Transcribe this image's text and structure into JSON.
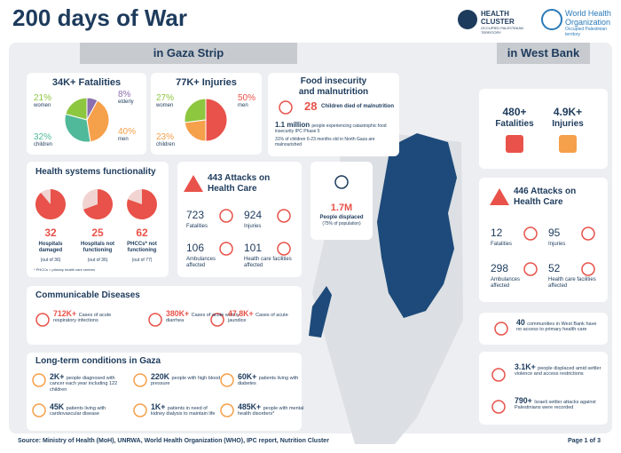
{
  "header": {
    "title": "200 days of War",
    "cluster_logo": [
      "HEALTH",
      "CLUSTER",
      "OCCUPIED PALESTINIAN TERRITORY"
    ],
    "who_logo": [
      "World Health",
      "Organization",
      "Occupied Palestinian territory"
    ]
  },
  "gaza": {
    "heading": "in Gaza Strip",
    "fatalities": {
      "title": "34K+ Fatalities",
      "shares": [
        {
          "value": 21,
          "label": "21%",
          "group": "women",
          "color": "#8dc63f"
        },
        {
          "value": 8,
          "label": "8%",
          "group": "elderly",
          "color": "#8b6fb0"
        },
        {
          "value": 40,
          "label": "40%",
          "group": "men",
          "color": "#f5a04a"
        },
        {
          "value": 32,
          "label": "32%",
          "group": "children",
          "color": "#4fb99a"
        }
      ]
    },
    "injuries": {
      "title": "77K+ Injuries",
      "shares": [
        {
          "value": 27,
          "label": "27%",
          "group": "women",
          "color": "#8dc63f"
        },
        {
          "value": 50,
          "label": "50%",
          "group": "men",
          "color": "#e8524a"
        },
        {
          "value": 23,
          "label": "23%",
          "group": "children",
          "color": "#f5a04a"
        }
      ]
    },
    "food": {
      "title": [
        "Food insecurity",
        "and malnutrition"
      ],
      "stat": {
        "number": "28",
        "text": "Children died of malnutrition"
      },
      "bullets": [
        {
          "strong": "1.1 million",
          "text": "people experiencing catastrophic food insecurity IPC Phase 5"
        },
        {
          "text": "31% of children 6-23 months old in North Gaza are malnourished"
        }
      ]
    },
    "health_systems": {
      "title": "Health systems functionality",
      "items": [
        {
          "count": 32,
          "total": {
            "value": 36,
            "label": "(out of 36)"
          },
          "name": "Hospitals damaged"
        },
        {
          "count": 25,
          "total": {
            "value": 36,
            "label": "(out of 36)"
          },
          "name": "Hospitals not functioning"
        },
        {
          "count": 62,
          "total": {
            "value": 77,
            "label": "(out of 77)"
          },
          "name": "PHCCs* not functioning"
        }
      ],
      "note": "* PHCCs = primary health care centres"
    },
    "attacks": {
      "title": "443 Attacks on Health Care",
      "items": [
        {
          "number": 723,
          "label": "Fatalities"
        },
        {
          "number": 924,
          "label": "Injuries"
        },
        {
          "number": 106,
          "label": "Ambulances affected"
        },
        {
          "number": 101,
          "label": "Health care facilities affected"
        }
      ]
    },
    "displaced": {
      "number": "1.7M",
      "text": "People displaced",
      "sub": "(75% of population)"
    },
    "communicable": {
      "title": "Communicable Diseases",
      "items": [
        {
          "number": "712K+",
          "text": "Cases of acute respiratory infections"
        },
        {
          "number": "380K+",
          "text": "Cases of acute watery diarrhea"
        },
        {
          "number": "47.8K+",
          "text": "Cases of acute jaundice"
        }
      ]
    },
    "longterm": {
      "title": "Long-term conditions in Gaza",
      "items": [
        {
          "number": "2K+",
          "text": "people diagnosed with cancer each year including 122 children"
        },
        {
          "number": "220K",
          "text": "people with high blood pressure"
        },
        {
          "number": "60K+",
          "text": "patients living with diabetes"
        },
        {
          "number": "45K",
          "text": "patients living with cardiovascular disease"
        },
        {
          "number": "1K+",
          "text": "patients in need of kidney dialysis to maintain life"
        },
        {
          "number": "485K+",
          "text": "people with mental health disorders*"
        }
      ]
    }
  },
  "west_bank": {
    "heading": "in West Bank",
    "fatalities": {
      "number": "480+",
      "label": "Fatalities"
    },
    "injuries": {
      "number": "4.9K+",
      "label": "Injuries"
    },
    "attacks": {
      "title": "446 Attacks on Health Care",
      "items": [
        {
          "number": 12,
          "label": "Fatalities"
        },
        {
          "number": 95,
          "label": "Injuries"
        },
        {
          "number": 298,
          "label": "Ambulances affected"
        },
        {
          "number": 52,
          "label": "Health care facilities affected"
        }
      ]
    },
    "communities": {
      "number": "40",
      "text": "communities in West Bank have no access to primary health care"
    },
    "displaced": {
      "number": "3.1K+",
      "text": "people displaced amid settler violence and access restrictions"
    },
    "settler": {
      "number": "790+",
      "text": "Israeli settler attacks against Palestinians were recorded"
    }
  },
  "footer": {
    "source": "Source: Ministry of Health (MoH), UNRWA, World Health Organization (WHO), IPC report, Nutrition Cluster",
    "page": "Page 1 of 3"
  }
}
